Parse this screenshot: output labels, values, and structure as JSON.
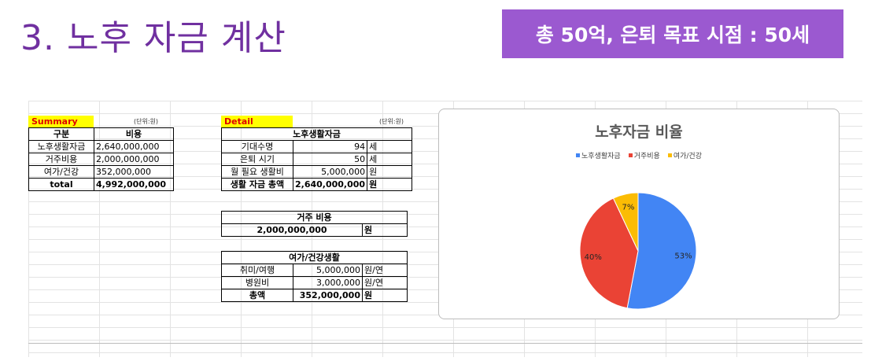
{
  "title": "3. 노후 자금 계산",
  "goal": "총 50억, 은퇴 목표 시점  : 50세",
  "summary": {
    "label": "Summary",
    "unit_note": "(단위:원)",
    "headers": [
      "구분",
      "비용"
    ],
    "rows": [
      {
        "name": "노후생활자금",
        "value": "2,640,000,000"
      },
      {
        "name": "거주비용",
        "value": "2,000,000,000"
      },
      {
        "name": "여가/건강",
        "value": "352,000,000"
      }
    ],
    "total": {
      "name": "total",
      "value": "4,992,000,000"
    }
  },
  "detail": {
    "label": "Detail",
    "unit_note": "(단위:원)",
    "living": {
      "header": "노후생활자금",
      "rows": [
        {
          "name": "기대수명",
          "value": "94",
          "unit": "세"
        },
        {
          "name": "은퇴 시기",
          "value": "50",
          "unit": "세"
        },
        {
          "name": "월 필요 생활비",
          "value": "5,000,000",
          "unit": "원"
        }
      ],
      "total": {
        "name": "생활 자금 총액",
        "value": "2,640,000,000",
        "unit": "원"
      }
    },
    "housing": {
      "header": "거주 비용",
      "value": "2,000,000,000",
      "unit": "원"
    },
    "leisure": {
      "header": "여가/건강생활",
      "rows": [
        {
          "name": "취미/여행",
          "value": "5,000,000",
          "unit": "원/연"
        },
        {
          "name": "병원비",
          "value": "3,000,000",
          "unit": "원/연"
        }
      ],
      "total": {
        "name": "총액",
        "value": "352,000,000",
        "unit": "원"
      }
    }
  },
  "chart_data": {
    "type": "pie",
    "title": "노후자금 비율",
    "legend_position": "top",
    "categories": [
      "노후생활자금",
      "거주비용",
      "여가/건강"
    ],
    "values": [
      53,
      40,
      7
    ],
    "labels": [
      "53%",
      "40%",
      "7%"
    ],
    "colors": [
      "#4285f4",
      "#ea4335",
      "#fbbc04"
    ]
  }
}
